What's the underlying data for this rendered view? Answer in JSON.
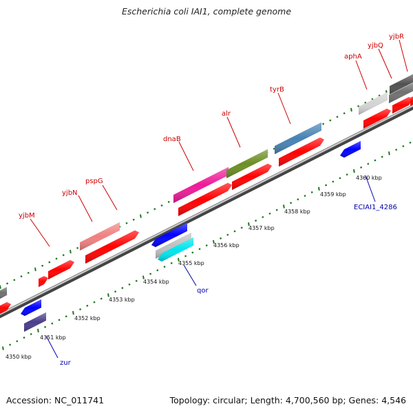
{
  "title": "Escherichia coli IAI1, complete genome",
  "footer": {
    "accession": "Accession: NC_011741",
    "summary": "Topology: circular; Length: 4,700,560 bp; Genes: 4,546"
  },
  "colors": {
    "tick": "#1a7a1a",
    "backbone_light": "#aaaaaa",
    "backbone_dark": "#444444",
    "label_red": "#cc0000",
    "label_blue": "#0000aa"
  },
  "scale": {
    "labels": [
      "4350 kbp",
      "4351 kbp",
      "4352 kbp",
      "4353 kbp",
      "4354 kbp",
      "4355 kbp",
      "4356 kbp",
      "4357 kbp",
      "4358 kbp",
      "4359 kbp",
      "4360 kbp"
    ]
  },
  "genes_top": [
    {
      "name": "yjbM"
    },
    {
      "name": "yjbN"
    },
    {
      "name": "pspG"
    },
    {
      "name": "dnaB"
    },
    {
      "name": "alr"
    },
    {
      "name": "tyrB"
    },
    {
      "name": "aphA"
    },
    {
      "name": "yjbQ"
    },
    {
      "name": "yjbR"
    }
  ],
  "genes_bottom": [
    {
      "name": "zur"
    },
    {
      "name": "qor"
    },
    {
      "name": "ECIAI1_4286"
    }
  ]
}
